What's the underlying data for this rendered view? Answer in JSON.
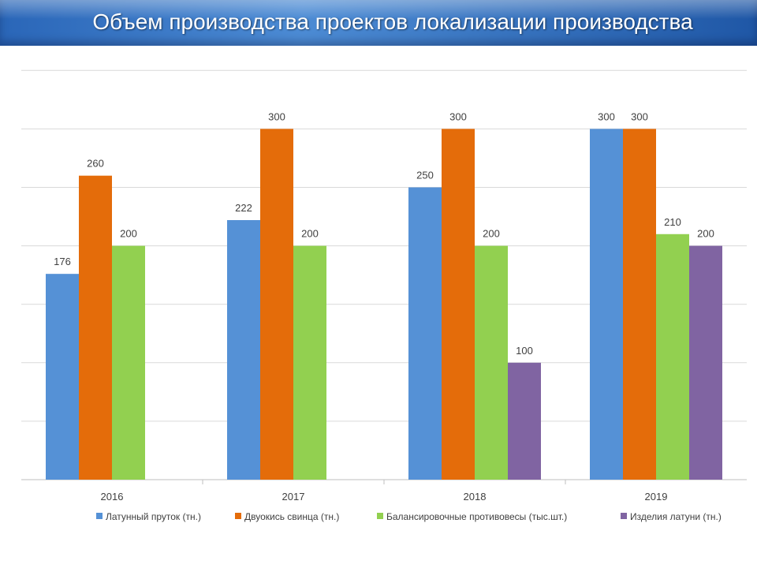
{
  "title": "Объем производства проектов локализации производства",
  "chart_data": {
    "type": "bar",
    "categories": [
      "2016",
      "2017",
      "2018",
      "2019"
    ],
    "ylim": [
      0,
      350
    ],
    "grid": true,
    "legend": "bottom",
    "series": [
      {
        "name": "Латунный пруток (тн.)",
        "color": "#5591d6",
        "values": [
          176,
          222,
          250,
          300
        ]
      },
      {
        "name": "Двуокись свинца (тн.)",
        "color": "#e46c0a",
        "values": [
          260,
          300,
          300,
          300
        ]
      },
      {
        "name": "Балансировочные противовесы (тыс.шт.)",
        "color": "#92d050",
        "values": [
          200,
          200,
          200,
          210
        ]
      },
      {
        "name": "Изделия латуни (тн.)",
        "color": "#8064a2",
        "values": [
          null,
          null,
          100,
          200
        ]
      }
    ]
  }
}
